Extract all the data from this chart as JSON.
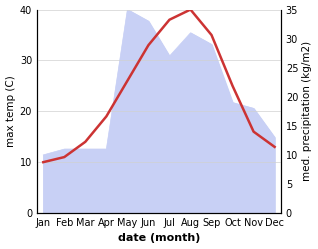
{
  "months": [
    "Jan",
    "Feb",
    "Mar",
    "Apr",
    "May",
    "Jun",
    "Jul",
    "Aug",
    "Sep",
    "Oct",
    "Nov",
    "Dec"
  ],
  "temperature": [
    10,
    11,
    14,
    19,
    26,
    33,
    38,
    40,
    35,
    25,
    16,
    13
  ],
  "precipitation": [
    10,
    11,
    11,
    11,
    35,
    33,
    27,
    31,
    29,
    19,
    18,
    13
  ],
  "temp_color": "#cc3333",
  "precip_fill_color": "#c8d0f5",
  "precip_edge_color": "#c8d0f5",
  "temp_ylim": [
    0,
    40
  ],
  "precip_ylim": [
    0,
    35
  ],
  "temp_yticks": [
    0,
    10,
    20,
    30,
    40
  ],
  "precip_yticks": [
    0,
    5,
    10,
    15,
    20,
    25,
    30,
    35
  ],
  "ylabel_left": "max temp (C)",
  "ylabel_right": "med. precipitation (kg/m2)",
  "xlabel": "date (month)",
  "bg_color": "#ffffff",
  "grid_color": "#d0d0d0",
  "temp_linewidth": 1.8
}
